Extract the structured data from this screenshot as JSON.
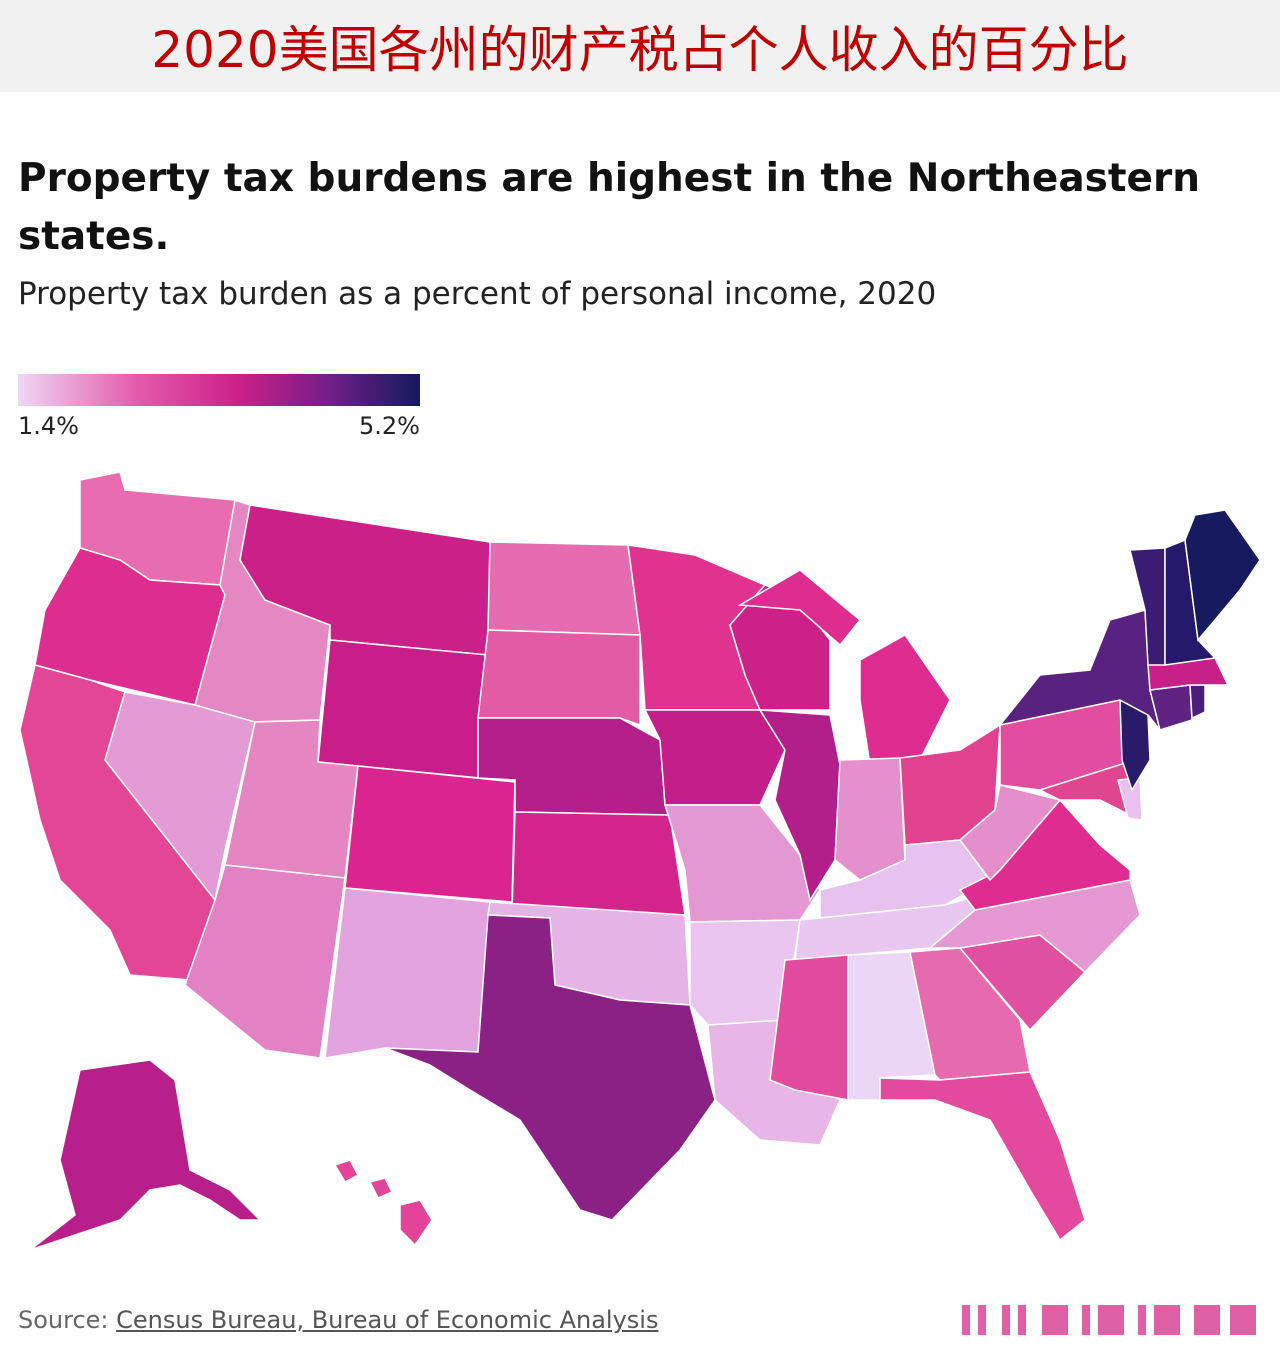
{
  "banner": {
    "title": "2020美国各州的财产税占个人收入的百分比"
  },
  "headline": "Property tax burdens are highest in the Northeastern states.",
  "subtitle": "Property tax burden as a percent of personal income, 2020",
  "legend": {
    "min_label": "1.4%",
    "max_label": "5.2%",
    "colors": [
      "#eed7f5",
      "#e35aa9",
      "#cc2089",
      "#6f1f87",
      "#141a5c"
    ]
  },
  "map": {
    "type": "choropleth",
    "region": "United States",
    "states": [
      {
        "name": "Washington",
        "color": "#e86cb0"
      },
      {
        "name": "Oregon",
        "color": "#dd2d8e"
      },
      {
        "name": "California",
        "color": "#e34597"
      },
      {
        "name": "Idaho",
        "color": "#e587c3"
      },
      {
        "name": "Nevada",
        "color": "#e39bd6"
      },
      {
        "name": "Montana",
        "color": "#cc2089"
      },
      {
        "name": "Wyoming",
        "color": "#c91e8a"
      },
      {
        "name": "Utah",
        "color": "#e585c1"
      },
      {
        "name": "Arizona",
        "color": "#e281c4"
      },
      {
        "name": "Colorado",
        "color": "#dc2490"
      },
      {
        "name": "New Mexico",
        "color": "#e3a3de"
      },
      {
        "name": "North Dakota",
        "color": "#e56cb0"
      },
      {
        "name": "South Dakota",
        "color": "#e35aa5"
      },
      {
        "name": "Nebraska",
        "color": "#b51f8a"
      },
      {
        "name": "Kansas",
        "color": "#d3248c"
      },
      {
        "name": "Oklahoma",
        "color": "#e5b3e6"
      },
      {
        "name": "Texas",
        "color": "#8b2185"
      },
      {
        "name": "Minnesota",
        "color": "#e0338f"
      },
      {
        "name": "Iowa",
        "color": "#c41f89"
      },
      {
        "name": "Missouri",
        "color": "#e398d3"
      },
      {
        "name": "Arkansas",
        "color": "#e9c5ef"
      },
      {
        "name": "Louisiana",
        "color": "#e7b5e6"
      },
      {
        "name": "Wisconsin",
        "color": "#cd2189"
      },
      {
        "name": "Illinois",
        "color": "#b21e8a"
      },
      {
        "name": "Michigan",
        "color": "#de2c90"
      },
      {
        "name": "Indiana",
        "color": "#e490cc"
      },
      {
        "name": "Ohio",
        "color": "#e0428f"
      },
      {
        "name": "Kentucky",
        "color": "#e8c2ee"
      },
      {
        "name": "Tennessee",
        "color": "#e8c7f0"
      },
      {
        "name": "Mississippi",
        "color": "#e34b9f"
      },
      {
        "name": "Alabama",
        "color": "#ebd6f5"
      },
      {
        "name": "Georgia",
        "color": "#e66aae"
      },
      {
        "name": "Florida",
        "color": "#e34a9e"
      },
      {
        "name": "South Carolina",
        "color": "#e050a0"
      },
      {
        "name": "North Carolina",
        "color": "#e598d2"
      },
      {
        "name": "Virginia",
        "color": "#df2c90"
      },
      {
        "name": "West Virginia",
        "color": "#e48fcb"
      },
      {
        "name": "Pennsylvania",
        "color": "#e34d9f"
      },
      {
        "name": "Maryland",
        "color": "#e0458f"
      },
      {
        "name": "Delaware",
        "color": "#e9c0ee"
      },
      {
        "name": "New Jersey",
        "color": "#2a1a6a"
      },
      {
        "name": "New York",
        "color": "#5a2280"
      },
      {
        "name": "Connecticut",
        "color": "#5e2383"
      },
      {
        "name": "Rhode Island",
        "color": "#4a1e7a"
      },
      {
        "name": "Massachusetts",
        "color": "#c72088"
      },
      {
        "name": "Vermont",
        "color": "#3a1d73"
      },
      {
        "name": "New Hampshire",
        "color": "#24196a"
      },
      {
        "name": "Maine",
        "color": "#151b5e"
      },
      {
        "name": "Alaska",
        "color": "#b91f8a"
      },
      {
        "name": "Hawaii",
        "color": "#e3449a"
      }
    ]
  },
  "source": {
    "prefix": "Source: ",
    "link_text": "Census Bureau, Bureau of Economic Analysis"
  }
}
